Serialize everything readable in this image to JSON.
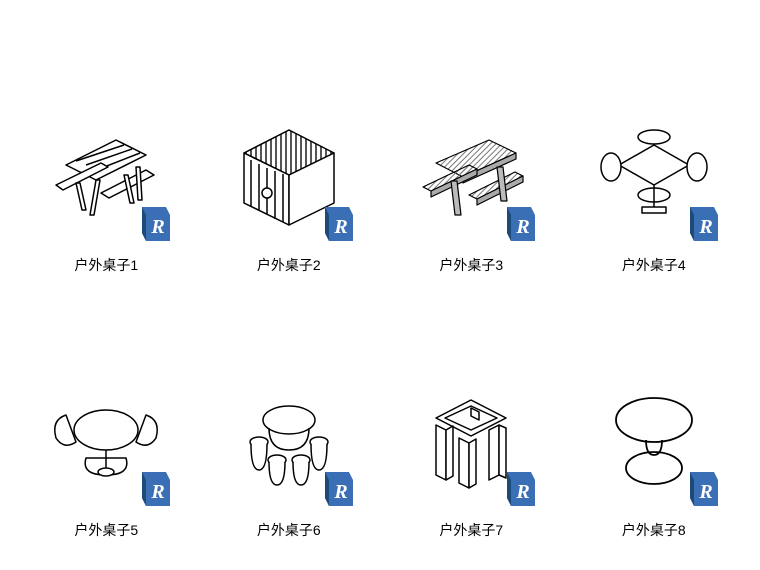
{
  "items": [
    {
      "label": "户外桌子1",
      "thumb_type": "picnic-table-wireframe",
      "icon_name": "picnic-table-1-icon"
    },
    {
      "label": "户外桌子2",
      "thumb_type": "kiosk-pergola",
      "icon_name": "kiosk-pergola-icon"
    },
    {
      "label": "户外桌子3",
      "thumb_type": "picnic-table-solid",
      "icon_name": "picnic-table-solid-icon"
    },
    {
      "label": "户外桌子4",
      "thumb_type": "square-table-4benches",
      "icon_name": "square-table-4benches-icon"
    },
    {
      "label": "户外桌子5",
      "thumb_type": "round-table-3benches",
      "icon_name": "round-table-3benches-icon"
    },
    {
      "label": "户外桌子6",
      "thumb_type": "round-table-stools",
      "icon_name": "round-table-stools-icon"
    },
    {
      "label": "户外桌子7",
      "thumb_type": "square-pillars-table",
      "icon_name": "square-pillars-table-icon"
    },
    {
      "label": "户外桌子8",
      "thumb_type": "round-table-pedestal",
      "icon_name": "round-table-pedestal-icon"
    }
  ],
  "badge": {
    "name": "revit-badge-icon",
    "bg_color": "#3b6fb5",
    "shadow_color": "#1e4a7a",
    "letter": "R",
    "letter_color": "#ffffff"
  },
  "colors": {
    "line": "#000000",
    "fill_hatch": "#888888",
    "light_fill": "#ffffff"
  }
}
